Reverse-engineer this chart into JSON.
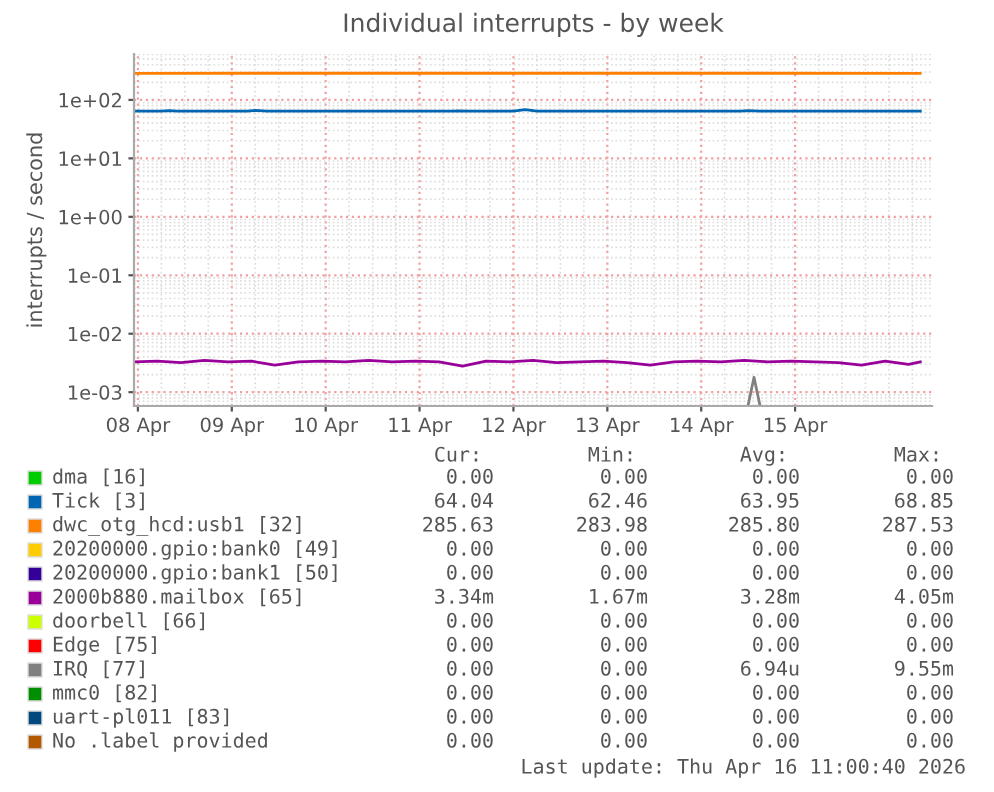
{
  "chart_data": {
    "type": "line",
    "title": "Individual interrupts - by week",
    "ylabel": "interrupts / second",
    "log": "y",
    "grid": true,
    "legend": "bottom",
    "line_style": "solid",
    "marker": "none",
    "xlim": [
      "2026-04-07T23:00",
      "2026-04-16T11:00"
    ],
    "xticks": [
      {
        "value": "2026-04-08",
        "label": "08 Apr"
      },
      {
        "value": "2026-04-09",
        "label": "09 Apr"
      },
      {
        "value": "2026-04-10",
        "label": "10 Apr"
      },
      {
        "value": "2026-04-11",
        "label": "11 Apr"
      },
      {
        "value": "2026-04-12",
        "label": "12 Apr"
      },
      {
        "value": "2026-04-13",
        "label": "13 Apr"
      },
      {
        "value": "2026-04-14",
        "label": "14 Apr"
      },
      {
        "value": "2026-04-15",
        "label": "15 Apr"
      }
    ],
    "ylim": [
      0.00058,
      610
    ],
    "yticks": [
      {
        "value": 0.001,
        "label": "1e-03"
      },
      {
        "value": 0.01,
        "label": "1e-02"
      },
      {
        "value": 0.1,
        "label": "1e-01"
      },
      {
        "value": 1,
        "label": "1e+00"
      },
      {
        "value": 10,
        "label": "1e+01"
      },
      {
        "value": 100,
        "label": "1e+02"
      }
    ],
    "series": [
      {
        "name": "dma [16]",
        "color": "#00cc00"
      },
      {
        "name": "Tick [3]",
        "color": "#0066b3",
        "x": [
          "2026-04-07T23:00",
          "2026-04-08T06:00",
          "2026-04-08T08:00",
          "2026-04-08T10:00",
          "2026-04-09T04:00",
          "2026-04-09T06:00",
          "2026-04-09T09:00",
          "2026-04-10T12:00",
          "2026-04-11T08:00",
          "2026-04-11T10:00",
          "2026-04-11T13:00",
          "2026-04-12T00:00",
          "2026-04-12T03:00",
          "2026-04-12T06:00",
          "2026-04-13T12:00",
          "2026-04-14T10:00",
          "2026-04-14T12:00",
          "2026-04-14T15:00",
          "2026-04-16T08:00"
        ],
        "values": [
          64,
          64,
          65.5,
          64,
          64,
          66,
          64,
          64,
          64,
          65,
          64,
          64,
          68,
          64,
          64,
          64,
          65.5,
          64,
          64
        ]
      },
      {
        "name": "dwc_otg_hcd:usb1 [32]",
        "color": "#ff8000",
        "x": [
          "2026-04-07T23:00",
          "2026-04-12T00:00",
          "2026-04-16T08:00"
        ],
        "values": [
          285.6,
          285.8,
          285.6
        ]
      },
      {
        "name": "20200000.gpio:bank0 [49]",
        "color": "#ffcc00"
      },
      {
        "name": "20200000.gpio:bank1 [50]",
        "color": "#330099"
      },
      {
        "name": "2000b880.mailbox [65]",
        "color": "#990099",
        "x": [
          "2026-04-07T23:00",
          "2026-04-08T05:00",
          "2026-04-08T11:00",
          "2026-04-08T17:00",
          "2026-04-08T23:00",
          "2026-04-09T05:00",
          "2026-04-09T11:00",
          "2026-04-09T17:00",
          "2026-04-09T23:00",
          "2026-04-10T05:00",
          "2026-04-10T11:00",
          "2026-04-10T17:00",
          "2026-04-10T23:00",
          "2026-04-11T05:00",
          "2026-04-11T11:00",
          "2026-04-11T17:00",
          "2026-04-11T23:00",
          "2026-04-12T05:00",
          "2026-04-12T11:00",
          "2026-04-12T17:00",
          "2026-04-12T23:00",
          "2026-04-13T05:00",
          "2026-04-13T11:00",
          "2026-04-13T17:00",
          "2026-04-13T23:00",
          "2026-04-14T05:00",
          "2026-04-14T11:00",
          "2026-04-14T17:00",
          "2026-04-14T23:00",
          "2026-04-15T05:00",
          "2026-04-15T11:00",
          "2026-04-15T17:00",
          "2026-04-15T23:00",
          "2026-04-16T05:00",
          "2026-04-16T08:00"
        ],
        "values": [
          0.0033,
          0.0034,
          0.0032,
          0.0035,
          0.0033,
          0.0034,
          0.0029,
          0.0033,
          0.0034,
          0.0033,
          0.0035,
          0.0033,
          0.0034,
          0.0033,
          0.0028,
          0.0034,
          0.0033,
          0.0035,
          0.0032,
          0.0033,
          0.0034,
          0.0032,
          0.0029,
          0.0033,
          0.0034,
          0.0033,
          0.0035,
          0.0033,
          0.0034,
          0.0033,
          0.0032,
          0.0029,
          0.0034,
          0.003,
          0.0033
        ]
      },
      {
        "name": "doorbell [66]",
        "color": "#ccff00"
      },
      {
        "name": "Edge [75]",
        "color": "#ff0000"
      },
      {
        "name": "IRQ [77]",
        "color": "#808080",
        "x": [
          "2026-04-14T12:00",
          "2026-04-14T13:30",
          "2026-04-14T15:00"
        ],
        "values": [
          0.0006,
          0.0018,
          0.0006
        ]
      },
      {
        "name": "mmc0 [82]",
        "color": "#008f00"
      },
      {
        "name": "uart-pl011 [83]",
        "color": "#00487d"
      },
      {
        "name": "No .label provided",
        "color": "#b35a00"
      }
    ],
    "annotations": [
      "Cur:",
      "Min:",
      "Avg:",
      "Max:",
      "0.00",
      "0.00",
      "0.00",
      "0.00",
      "64.04",
      "62.46",
      "63.95",
      "68.85",
      "285.63",
      "283.98",
      "285.80",
      "287.53",
      "0.00",
      "0.00",
      "0.00",
      "0.00",
      "0.00",
      "0.00",
      "0.00",
      "0.00",
      "3.34m",
      "1.67m",
      "3.28m",
      "4.05m",
      "0.00",
      "0.00",
      "0.00",
      "0.00",
      "0.00",
      "0.00",
      "0.00",
      "0.00",
      "0.00",
      "0.00",
      "6.94u",
      "9.55m",
      "0.00",
      "0.00",
      "0.00",
      "0.00",
      "0.00",
      "0.00",
      "0.00",
      "0.00",
      "0.00",
      "0.00",
      "0.00",
      "0.00",
      "Last update: Thu Apr 16 11:00:40 2026"
    ]
  }
}
